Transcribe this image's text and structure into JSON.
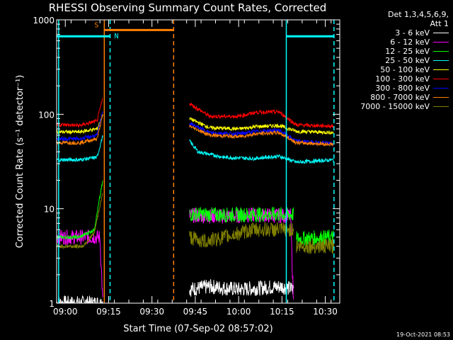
{
  "chart_data": {
    "type": "line",
    "title": "RHESSI Observing Summary Count Rates, Corrected",
    "ylabel": "Corrected Count Rate (s⁻¹ detector⁻¹)",
    "xlabel": "Start Time (07-Sep-02 08:57:02)",
    "y_scale": "log",
    "ylim": [
      1,
      1000
    ],
    "y_ticks": [
      {
        "value": 1,
        "label": "1"
      },
      {
        "value": 10,
        "label": "10"
      },
      {
        "value": 100,
        "label": "100"
      },
      {
        "value": 1000,
        "label": "1000"
      }
    ],
    "xlim_minutes": [
      -3,
      95
    ],
    "x_ticks": [
      {
        "minute": 0,
        "label": "09:00"
      },
      {
        "minute": 15,
        "label": "09:15"
      },
      {
        "minute": 30,
        "label": "09:30"
      },
      {
        "minute": 45,
        "label": "09:45"
      },
      {
        "minute": 60,
        "label": "10:00"
      },
      {
        "minute": 75,
        "label": "10:15"
      },
      {
        "minute": 90,
        "label": "10:30"
      }
    ],
    "legend": {
      "placement": "right",
      "header": [
        "Det 1,3,4,5,6,9,",
        "Att 1"
      ]
    },
    "series": [
      {
        "name": "3 - 6 keV",
        "color": "#ffffff",
        "segments": [
          [
            [
              -3,
              1
            ],
            [
              13,
              1
            ]
          ],
          [
            [
              43,
              1.4
            ],
            [
              50,
              1.5
            ],
            [
              60,
              1.4
            ],
            [
              75,
              1.5
            ],
            [
              79,
              1.4
            ]
          ]
        ]
      },
      {
        "name": "6 - 12 keV",
        "color": "#ff00ff",
        "segments": [
          [
            [
              -3,
              5
            ],
            [
              12,
              5
            ],
            [
              13,
              1
            ]
          ],
          [
            [
              43,
              8.5
            ],
            [
              55,
              8.3
            ],
            [
              65,
              8.6
            ],
            [
              78,
              8.4
            ],
            [
              79,
              1
            ]
          ]
        ]
      },
      {
        "name": "12 - 25 keV",
        "color": "#00ff00",
        "segments": [
          [
            [
              -3,
              5
            ],
            [
              5,
              5
            ],
            [
              10,
              6
            ],
            [
              13,
              20
            ]
          ],
          [
            [
              43,
              8.8
            ],
            [
              55,
              8.6
            ],
            [
              65,
              8.7
            ],
            [
              79,
              8.7
            ]
          ],
          [
            [
              80,
              4.8
            ],
            [
              93,
              5
            ]
          ]
        ]
      },
      {
        "name": "25 - 50 keV",
        "color": "#00ffff",
        "segments": [
          [
            [
              -3,
              33
            ],
            [
              5,
              33
            ],
            [
              11,
              35
            ],
            [
              13,
              60
            ]
          ],
          [
            [
              43,
              52
            ],
            [
              46,
              40
            ],
            [
              55,
              35
            ],
            [
              65,
              34
            ],
            [
              74,
              36
            ],
            [
              80,
              31
            ],
            [
              93,
              33
            ]
          ]
        ]
      },
      {
        "name": "50 - 100 keV",
        "color": "#ffff00",
        "segments": [
          [
            [
              -3,
              65
            ],
            [
              5,
              65
            ],
            [
              11,
              70
            ],
            [
              13,
              100
            ]
          ],
          [
            [
              43,
              90
            ],
            [
              50,
              72
            ],
            [
              60,
              70
            ],
            [
              66,
              74
            ],
            [
              74,
              76
            ],
            [
              80,
              66
            ],
            [
              93,
              64
            ]
          ]
        ]
      },
      {
        "name": "100 - 300 keV",
        "color": "#ff0000",
        "segments": [
          [
            [
              -3,
              78
            ],
            [
              5,
              76
            ],
            [
              11,
              85
            ],
            [
              13,
              150
            ]
          ],
          [
            [
              43,
              130
            ],
            [
              50,
              95
            ],
            [
              60,
              95
            ],
            [
              66,
              105
            ],
            [
              74,
              106
            ],
            [
              80,
              77
            ],
            [
              93,
              75
            ]
          ]
        ]
      },
      {
        "name": "300 - 800 keV",
        "color": "#0000ff",
        "segments": [
          [
            [
              -3,
              55
            ],
            [
              5,
              55
            ],
            [
              11,
              60
            ],
            [
              13,
              110
            ]
          ],
          [
            [
              43,
              80
            ],
            [
              50,
              64
            ],
            [
              60,
              62
            ],
            [
              66,
              66
            ],
            [
              74,
              68
            ],
            [
              80,
              52
            ],
            [
              93,
              49
            ]
          ]
        ]
      },
      {
        "name": "800 - 7000 keV",
        "color": "#ff8000",
        "segments": [
          [
            [
              -3,
              50
            ],
            [
              5,
              50
            ],
            [
              11,
              55
            ],
            [
              13,
              100
            ]
          ],
          [
            [
              43,
              75
            ],
            [
              50,
              60
            ],
            [
              60,
              58
            ],
            [
              66,
              62
            ],
            [
              74,
              64
            ],
            [
              80,
              50
            ],
            [
              93,
              48
            ]
          ]
        ]
      },
      {
        "name": "7000 - 15000 keV",
        "color": "#808000",
        "segments": [
          [
            [
              -3,
              4
            ],
            [
              6,
              4
            ],
            [
              10,
              5.5
            ],
            [
              13,
              15
            ]
          ],
          [
            [
              43,
              5
            ],
            [
              48,
              4.5
            ],
            [
              55,
              5
            ],
            [
              65,
              6
            ],
            [
              79,
              6
            ]
          ],
          [
            [
              80,
              4
            ],
            [
              93,
              4
            ]
          ]
        ]
      }
    ],
    "annotations": {
      "markers": [
        {
          "label": "S",
          "color": "#ff8000"
        },
        {
          "label": "N",
          "color": "#00ffff"
        }
      ],
      "saa_bar": {
        "color": "#ff8000",
        "start": 13.5,
        "end": 37.5,
        "value": 780
      },
      "night_bars": [
        {
          "color": "#00ffff",
          "start": -3,
          "end": 15.5,
          "value": 670
        },
        {
          "color": "#00ffff",
          "start": 76.5,
          "end": 93,
          "value": 670
        }
      ],
      "vlines": [
        {
          "minute": -2.3,
          "color": "#00ffff",
          "style": "solid"
        },
        {
          "minute": 13.5,
          "color": "#ff8000",
          "style": "solid"
        },
        {
          "minute": 15.5,
          "color": "#00ffff",
          "style": "dashed"
        },
        {
          "minute": 37.5,
          "color": "#ff8000",
          "style": "dashed"
        },
        {
          "minute": 76.5,
          "color": "#00ffff",
          "style": "solid"
        },
        {
          "minute": 93,
          "color": "#00ffff",
          "style": "dashed"
        }
      ]
    }
  },
  "footer": {
    "timestamp": "19-Oct-2021 08:53"
  }
}
